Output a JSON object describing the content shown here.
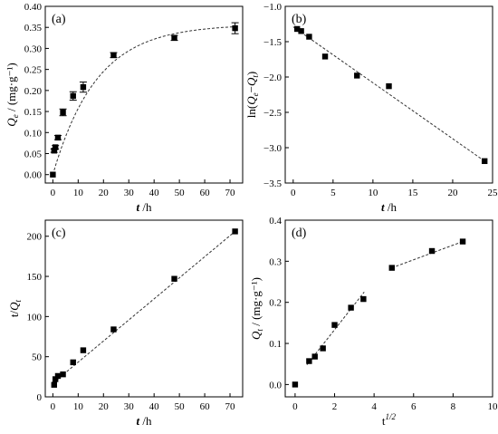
{
  "chart_data": [
    {
      "type": "scatter",
      "panel_label": "(a)",
      "xlabel": "t /h",
      "ylabel": "Qe / (mg·g⁻¹)",
      "xlim": [
        -3,
        75
      ],
      "ylim": [
        -0.02,
        0.4
      ],
      "xticks": [
        0,
        10,
        20,
        30,
        40,
        50,
        60,
        70
      ],
      "yticks": [
        0.0,
        0.05,
        0.1,
        0.15,
        0.2,
        0.25,
        0.3,
        0.35,
        0.4
      ],
      "series": [
        {
          "points": [
            {
              "x": 0,
              "y": 0.0,
              "err": 0
            },
            {
              "x": 0.5,
              "y": 0.057,
              "err": 0.004
            },
            {
              "x": 1,
              "y": 0.065,
              "err": 0.004
            },
            {
              "x": 2,
              "y": 0.088,
              "err": 0.005
            },
            {
              "x": 4,
              "y": 0.148,
              "err": 0.008
            },
            {
              "x": 8,
              "y": 0.187,
              "err": 0.01
            },
            {
              "x": 12,
              "y": 0.208,
              "err": 0.012
            },
            {
              "x": 24,
              "y": 0.284,
              "err": 0.006
            },
            {
              "x": 48,
              "y": 0.325,
              "err": 0.006
            },
            {
              "x": 72,
              "y": 0.348,
              "err": 0.013
            }
          ]
        }
      ],
      "fit_curve": {
        "qe": 0.357,
        "k": 0.058
      }
    },
    {
      "type": "scatter",
      "panel_label": "(b)",
      "xlabel": "t /h",
      "ylabel": "ln(Qe−Qt)",
      "xlim": [
        -1,
        25
      ],
      "ylim": [
        -3.5,
        -1
      ],
      "xticks": [
        0,
        5,
        10,
        15,
        20,
        25
      ],
      "yticks": [
        -3.5,
        -3.0,
        -2.5,
        -2.0,
        -1.5,
        -1.0
      ],
      "series": [
        {
          "points": [
            {
              "x": 0.5,
              "y": -1.32
            },
            {
              "x": 1,
              "y": -1.35
            },
            {
              "x": 2,
              "y": -1.43
            },
            {
              "x": 4,
              "y": -1.71
            },
            {
              "x": 8,
              "y": -1.98
            },
            {
              "x": 12,
              "y": -2.13
            },
            {
              "x": 24,
              "y": -3.19
            }
          ]
        }
      ],
      "fit_line": [
        {
          "x": 0,
          "y": -1.29
        },
        {
          "x": 24,
          "y": -3.19
        }
      ]
    },
    {
      "type": "scatter",
      "panel_label": "(c)",
      "xlabel": "t /h",
      "ylabel": "t/Qt",
      "xlim": [
        -3,
        75
      ],
      "ylim": [
        0,
        220
      ],
      "xticks": [
        0,
        10,
        20,
        30,
        40,
        50,
        60,
        70
      ],
      "yticks": [
        0,
        50,
        100,
        150,
        200
      ],
      "series": [
        {
          "points": [
            {
              "x": 0.5,
              "y": 15
            },
            {
              "x": 1,
              "y": 22
            },
            {
              "x": 2,
              "y": 26
            },
            {
              "x": 4,
              "y": 28
            },
            {
              "x": 8,
              "y": 43
            },
            {
              "x": 12,
              "y": 58
            },
            {
              "x": 24,
              "y": 84
            },
            {
              "x": 48,
              "y": 147
            },
            {
              "x": 72,
              "y": 206
            }
          ]
        }
      ],
      "fit_line": [
        {
          "x": 0,
          "y": 17
        },
        {
          "x": 72,
          "y": 206
        }
      ]
    },
    {
      "type": "scatter",
      "panel_label": "(d)",
      "xlabel": "t^1/2",
      "ylabel": "Qt / (mg·g⁻¹)",
      "xlim": [
        -0.5,
        10
      ],
      "ylim": [
        -0.03,
        0.4
      ],
      "xticks": [
        0,
        2,
        4,
        6,
        8,
        10
      ],
      "yticks": [
        0.0,
        0.1,
        0.2,
        0.3,
        0.4
      ],
      "series": [
        {
          "points": [
            {
              "x": 0,
              "y": 0.0
            },
            {
              "x": 0.71,
              "y": 0.057
            },
            {
              "x": 1.0,
              "y": 0.068
            },
            {
              "x": 1.41,
              "y": 0.088
            },
            {
              "x": 2.0,
              "y": 0.145
            },
            {
              "x": 2.83,
              "y": 0.187
            },
            {
              "x": 3.46,
              "y": 0.208
            },
            {
              "x": 4.9,
              "y": 0.284
            },
            {
              "x": 6.93,
              "y": 0.325
            },
            {
              "x": 8.49,
              "y": 0.348
            }
          ]
        }
      ],
      "fit_segments": [
        [
          {
            "x": 0.6,
            "y": 0.048
          },
          {
            "x": 3.5,
            "y": 0.225
          }
        ],
        [
          {
            "x": 4.9,
            "y": 0.284
          },
          {
            "x": 8.49,
            "y": 0.348
          }
        ]
      ]
    }
  ]
}
